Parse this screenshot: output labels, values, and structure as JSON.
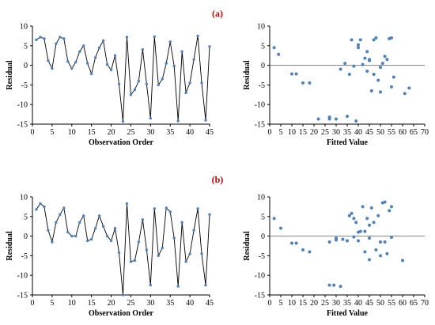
{
  "figure": {
    "label_colors": {
      "panel_label": "#c00000",
      "line": "#000000",
      "marker": "#4f81bd",
      "zero_line": "#808080"
    }
  },
  "panels": [
    {
      "label": "(a)"
    },
    {
      "label": "(b)"
    }
  ],
  "chart_data": [
    {
      "type": "line",
      "panel": "(a)",
      "xlabel": "Observation  Order",
      "ylabel": "Residual",
      "xlim": [
        0,
        45
      ],
      "ylim": [
        -15,
        10
      ],
      "xticks": [
        0,
        5,
        10,
        15,
        20,
        25,
        30,
        35,
        40,
        45
      ],
      "yticks": [
        -15,
        -10,
        -5,
        0,
        5,
        10
      ],
      "markers": true,
      "x": [
        1,
        2,
        3,
        4,
        5,
        6,
        7,
        8,
        9,
        10,
        11,
        12,
        13,
        14,
        15,
        16,
        17,
        18,
        19,
        20,
        21,
        22,
        23,
        24,
        25,
        26,
        27,
        28,
        29,
        30,
        31,
        32,
        33,
        34,
        35,
        36,
        37,
        38,
        39,
        40,
        41,
        42,
        43,
        44,
        45
      ],
      "y": [
        6.5,
        7.2,
        6.8,
        1.2,
        -0.8,
        5.5,
        7.2,
        6.8,
        1.0,
        -0.8,
        0.8,
        3.5,
        5.0,
        0.5,
        -2.2,
        2.0,
        4.5,
        6.3,
        0.2,
        -1.2,
        2.5,
        -4.8,
        -14.3,
        7.2,
        -7.5,
        -6.2,
        -4.0,
        4.0,
        -4.8,
        -13.5,
        7.3,
        -5.0,
        -3.5,
        0.5,
        6.0,
        -0.2,
        -14.2,
        3.5,
        -7.0,
        -4.5,
        1.5,
        7.5,
        -4.5,
        -14.0,
        4.8
      ]
    },
    {
      "type": "scatter",
      "panel": "(a)",
      "xlabel": "Fitted  Value",
      "ylabel": "Residual",
      "xlim": [
        0,
        70
      ],
      "ylim": [
        -15,
        10
      ],
      "xticks": [
        0,
        5,
        10,
        15,
        20,
        25,
        30,
        35,
        40,
        45,
        50,
        55,
        60,
        65,
        70
      ],
      "yticks": [
        -15,
        -10,
        -5,
        0,
        5,
        10
      ],
      "reference_line_y": 0,
      "x": [
        2,
        4,
        10,
        12,
        15,
        18,
        27,
        30,
        32,
        34,
        36,
        37,
        38,
        39,
        40,
        40,
        41,
        42,
        43,
        44,
        45,
        45,
        46,
        47,
        47,
        48,
        49,
        50,
        51,
        52,
        53,
        54,
        55,
        55,
        56,
        61,
        63,
        27,
        35,
        22,
        44,
        50
      ],
      "y": [
        4.5,
        2.8,
        -2.2,
        -2.2,
        -4.5,
        -4.5,
        -13.7,
        -13.7,
        -1.0,
        0.5,
        -2.3,
        6.5,
        -0.2,
        -14.2,
        4.5,
        5.2,
        6.5,
        0.2,
        1.8,
        3.5,
        1.5,
        1.2,
        -6.5,
        6.5,
        -2.3,
        7.0,
        -3.8,
        -6.8,
        0.5,
        2.3,
        1.5,
        6.8,
        7.0,
        -5.5,
        -3.0,
        -7.2,
        -5.8,
        -13.2,
        -13.0,
        -13.7,
        -1.5,
        -0.5
      ]
    },
    {
      "type": "line",
      "panel": "(b)",
      "xlabel": "Observation  Order",
      "ylabel": "Residual",
      "xlim": [
        0,
        45
      ],
      "ylim": [
        -15,
        10
      ],
      "xticks": [
        0,
        5,
        10,
        15,
        20,
        25,
        30,
        35,
        40,
        45
      ],
      "yticks": [
        -15,
        -10,
        -5,
        0,
        5,
        10
      ],
      "markers": true,
      "x": [
        1,
        2,
        3,
        4,
        5,
        6,
        7,
        8,
        9,
        10,
        11,
        12,
        13,
        14,
        15,
        16,
        17,
        18,
        19,
        20,
        21,
        22,
        23,
        24,
        25,
        26,
        27,
        28,
        29,
        30,
        31,
        32,
        33,
        34,
        35,
        36,
        37,
        38,
        39,
        40,
        41,
        42,
        43,
        44,
        45
      ],
      "y": [
        6.8,
        8.3,
        7.5,
        1.5,
        -1.5,
        3.5,
        5.5,
        7.2,
        1.0,
        0.0,
        0.0,
        3.5,
        5.2,
        -1.2,
        -0.8,
        2.0,
        5.2,
        2.5,
        0.0,
        -1.2,
        2.0,
        -4.2,
        -15.0,
        8.3,
        -6.5,
        -6.2,
        -1.5,
        4.2,
        -3.5,
        -12.5,
        7.0,
        -5.0,
        -3.0,
        7.2,
        6.2,
        -0.5,
        -12.8,
        3.5,
        -6.5,
        -4.5,
        1.5,
        7.0,
        -4.5,
        -12.5,
        5.5
      ]
    },
    {
      "type": "scatter",
      "panel": "(b)",
      "xlabel": "Fitted  Value",
      "ylabel": "Residual",
      "xlim": [
        0,
        70
      ],
      "ylim": [
        -15,
        10
      ],
      "xticks": [
        0,
        5,
        10,
        15,
        20,
        25,
        30,
        35,
        40,
        45,
        50,
        55,
        60,
        65,
        70
      ],
      "yticks": [
        -15,
        -10,
        -5,
        0,
        5,
        10
      ],
      "reference_line_y": 0,
      "x": [
        2,
        5,
        10,
        12,
        15,
        18,
        27,
        29,
        30,
        32,
        35,
        36,
        37,
        38,
        39,
        40,
        41,
        42,
        43,
        44,
        45,
        45,
        46,
        47,
        48,
        49,
        50,
        51,
        52,
        53,
        54,
        55,
        60,
        27,
        30,
        33,
        40,
        43,
        45,
        50,
        52,
        55,
        38
      ],
      "y": [
        4.5,
        2.0,
        -1.8,
        -1.8,
        -3.5,
        -4.0,
        -12.5,
        -12.5,
        -1.0,
        -12.8,
        -1.2,
        5.2,
        5.8,
        -0.2,
        3.5,
        1.0,
        1.2,
        7.5,
        1.2,
        4.5,
        2.8,
        -6.0,
        7.2,
        3.5,
        -3.5,
        5.2,
        -1.5,
        8.5,
        8.7,
        -4.5,
        6.5,
        7.5,
        -6.2,
        -1.5,
        -0.5,
        -0.8,
        -1.2,
        -4.0,
        -0.5,
        -5.0,
        -1.5,
        -0.3,
        4.5
      ]
    }
  ]
}
